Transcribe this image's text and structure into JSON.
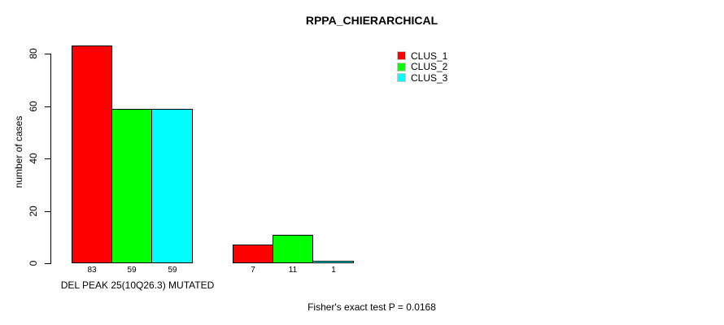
{
  "title": "RPPA_CHIERARCHICAL",
  "footer": "Fisher's exact test P = 0.0168",
  "chart_data": {
    "type": "bar",
    "title": "RPPA_CHIERARCHICAL",
    "xlabel": "",
    "ylabel": "number of cases",
    "ylim": [
      0,
      80
    ],
    "yticks": [
      0,
      20,
      40,
      60,
      80
    ],
    "grid": false,
    "legend_position": "top-right",
    "bar_border_color": "#000000",
    "categories": [
      "DEL PEAK 25(10Q26.3) MUTATED",
      ""
    ],
    "series": [
      {
        "name": "CLUS_1",
        "color": "#ff0000",
        "values": [
          83,
          7
        ]
      },
      {
        "name": "CLUS_2",
        "color": "#00ff00",
        "values": [
          59,
          11
        ]
      },
      {
        "name": "CLUS_3",
        "color": "#00ffff",
        "values": [
          59,
          1
        ]
      }
    ],
    "bar_value_labels": [
      [
        83,
        59,
        59
      ],
      [
        7,
        11,
        1
      ]
    ],
    "legend": [
      {
        "label": "CLUS_1",
        "color": "#ff0000"
      },
      {
        "label": "CLUS_2",
        "color": "#00ff00"
      },
      {
        "label": "CLUS_3",
        "color": "#00ffff"
      }
    ],
    "annotation": "Fisher's exact test P = 0.0168"
  }
}
